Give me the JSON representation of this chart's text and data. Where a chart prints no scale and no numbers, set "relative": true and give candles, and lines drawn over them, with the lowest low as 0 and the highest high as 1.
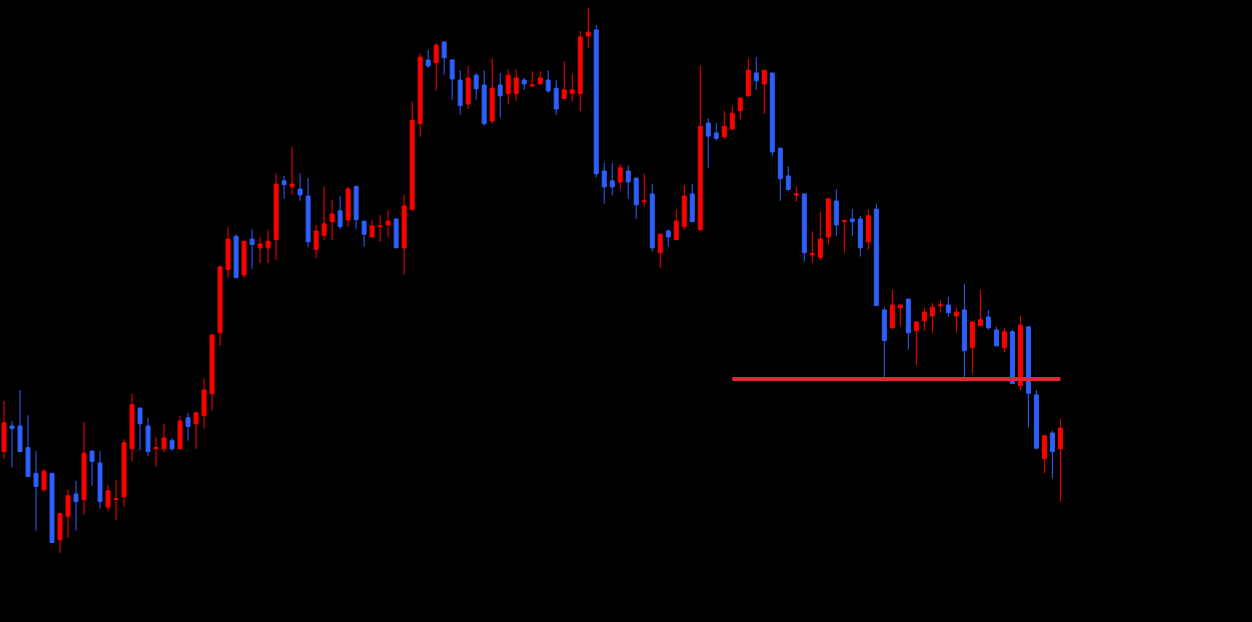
{
  "chart_data": {
    "type": "candlestick",
    "relative": true,
    "categories": [
      null,
      null,
      null,
      null,
      null,
      null,
      null,
      null,
      null,
      null,
      null,
      null,
      null,
      null,
      null,
      null,
      null,
      null,
      null,
      null,
      null,
      null,
      null,
      null,
      null,
      null,
      null,
      null,
      null,
      null,
      null,
      null,
      null,
      null,
      null,
      null,
      null,
      null,
      null,
      null,
      null,
      null,
      null,
      null,
      null,
      null,
      null,
      null,
      null,
      null,
      null,
      null,
      null,
      null,
      null,
      null,
      null,
      null,
      null,
      null,
      null,
      null,
      null,
      null,
      null,
      null,
      null,
      null,
      null,
      null,
      null,
      null,
      null,
      null,
      null,
      null,
      null,
      null,
      null,
      null,
      null,
      null,
      null,
      null,
      null,
      null,
      null,
      null,
      null,
      null,
      null,
      null,
      null,
      null,
      null,
      null,
      null,
      null,
      null,
      null,
      null,
      null,
      null,
      null,
      null,
      null,
      null,
      null,
      null,
      null,
      null,
      null,
      null,
      null,
      null,
      null,
      null,
      null,
      null,
      null,
      null,
      null,
      null,
      null,
      null,
      null,
      null,
      null,
      null,
      null,
      null,
      null,
      null
    ],
    "ohlc": [
      [
        0.186,
        0.279,
        0.172,
        0.239
      ],
      [
        0.233,
        0.242,
        0.157,
        0.228
      ],
      [
        0.233,
        0.299,
        0.186,
        0.186
      ],
      [
        0.193,
        0.253,
        0.14,
        0.14
      ],
      [
        0.146,
        0.187,
        0.041,
        0.122
      ],
      [
        0.116,
        0.154,
        0.112,
        0.15
      ],
      [
        0.146,
        0.146,
        0.019,
        0.019
      ],
      [
        0.024,
        0.072,
        0,
        0.072
      ],
      [
        0.067,
        0.116,
        0.028,
        0.105
      ],
      [
        0.108,
        0.132,
        0.041,
        0.094
      ],
      [
        0.098,
        0.24,
        0.07,
        0.183
      ],
      [
        0.187,
        0.187,
        0.123,
        0.168
      ],
      [
        0.165,
        0.187,
        0.081,
        0.094
      ],
      [
        0.084,
        0.125,
        0.076,
        0.114
      ],
      [
        0.098,
        0.134,
        0.061,
        0.099
      ],
      [
        0.103,
        0.209,
        0.084,
        0.202
      ],
      [
        0.191,
        0.292,
        0.168,
        0.272
      ],
      [
        0.266,
        0.266,
        0.188,
        0.237
      ],
      [
        0.233,
        0.248,
        0.178,
        0.186
      ],
      [
        0.191,
        0.213,
        0.158,
        0.193
      ],
      [
        0.191,
        0.237,
        0.185,
        0.211
      ],
      [
        0.206,
        0.211,
        0.187,
        0.191
      ],
      [
        0.191,
        0.251,
        0.191,
        0.242
      ],
      [
        0.248,
        0.257,
        0.206,
        0.232
      ],
      [
        0.237,
        0.257,
        0.191,
        0.257
      ],
      [
        0.252,
        0.32,
        0.228,
        0.299
      ],
      [
        0.292,
        0.4,
        0.261,
        0.4
      ],
      [
        0.404,
        0.528,
        0.38,
        0.525
      ],
      [
        0.52,
        0.598,
        0.505,
        0.576
      ],
      [
        0.581,
        0.585,
        0.505,
        0.505
      ],
      [
        0.51,
        0.572,
        0.505,
        0.572
      ],
      [
        0.576,
        0.594,
        0.521,
        0.566
      ],
      [
        0.56,
        0.58,
        0.532,
        0.567
      ],
      [
        0.56,
        0.593,
        0.532,
        0.572
      ],
      [
        0.575,
        0.696,
        0.538,
        0.677
      ],
      [
        0.683,
        0.692,
        0.65,
        0.676
      ],
      [
        0.672,
        0.745,
        0.657,
        0.677
      ],
      [
        0.668,
        0.697,
        0.646,
        0.657
      ],
      [
        0.655,
        0.688,
        0.561,
        0.571
      ],
      [
        0.557,
        0.602,
        0.541,
        0.591
      ],
      [
        0.583,
        0.672,
        0.574,
        0.604
      ],
      [
        0.608,
        0.648,
        0.574,
        0.622
      ],
      [
        0.628,
        0.655,
        0.594,
        0.599
      ],
      [
        0.611,
        0.672,
        0.598,
        0.668
      ],
      [
        0.673,
        0.673,
        0.595,
        0.612
      ],
      [
        0.609,
        0.609,
        0.562,
        0.585
      ],
      [
        0.58,
        0.611,
        0.58,
        0.6
      ],
      [
        0.599,
        0.62,
        0.571,
        0.6
      ],
      [
        0.602,
        0.629,
        0.58,
        0.609
      ],
      [
        0.613,
        0.613,
        0.56,
        0.56
      ],
      [
        0.56,
        0.657,
        0.51,
        0.637
      ],
      [
        0.63,
        0.829,
        0.63,
        0.794
      ],
      [
        0.788,
        0.917,
        0.764,
        0.91
      ],
      [
        0.905,
        0.923,
        0.89,
        0.894
      ],
      [
        0.9,
        0.936,
        0.848,
        0.932
      ],
      [
        0.938,
        0.938,
        0.878,
        0.909
      ],
      [
        0.905,
        0.905,
        0.832,
        0.87
      ],
      [
        0.868,
        0.886,
        0.804,
        0.821
      ],
      [
        0.824,
        0.894,
        0.815,
        0.872
      ],
      [
        0.877,
        0.881,
        0.832,
        0.852
      ],
      [
        0.859,
        0.886,
        0.784,
        0.788
      ],
      [
        0.793,
        0.908,
        0.788,
        0.853
      ],
      [
        0.859,
        0.881,
        0.799,
        0.839
      ],
      [
        0.843,
        0.888,
        0.824,
        0.877
      ],
      [
        0.843,
        0.888,
        0.83,
        0.872
      ],
      [
        0.868,
        0.872,
        0.85,
        0.861
      ],
      [
        0.857,
        0.884,
        0.857,
        0.859
      ],
      [
        0.861,
        0.884,
        0.861,
        0.872
      ],
      [
        0.868,
        0.886,
        0.845,
        0.848
      ],
      [
        0.853,
        0.868,
        0.804,
        0.815
      ],
      [
        0.834,
        0.903,
        0.834,
        0.85
      ],
      [
        0.843,
        0.879,
        0.829,
        0.85
      ],
      [
        0.843,
        0.958,
        0.811,
        0.947
      ],
      [
        0.949,
        1,
        0.927,
        0.956
      ],
      [
        0.96,
        0.969,
        0.689,
        0.696
      ],
      [
        0.701,
        0.716,
        0.641,
        0.672
      ],
      [
        0.683,
        0.716,
        0.656,
        0.672
      ],
      [
        0.681,
        0.714,
        0.667,
        0.707
      ],
      [
        0.701,
        0.711,
        0.65,
        0.681
      ],
      [
        0.688,
        0.688,
        0.613,
        0.639
      ],
      [
        0.645,
        0.696,
        0.635,
        0.646
      ],
      [
        0.659,
        0.677,
        0.553,
        0.56
      ],
      [
        0.551,
        0.585,
        0.523,
        0.585
      ],
      [
        0.591,
        0.594,
        0.562,
        0.58
      ],
      [
        0.575,
        0.63,
        0.575,
        0.609
      ],
      [
        0.599,
        0.675,
        0.593,
        0.655
      ],
      [
        0.659,
        0.677,
        0.608,
        0.608
      ],
      [
        0.593,
        0.894,
        0.593,
        0.783
      ],
      [
        0.789,
        0.798,
        0.707,
        0.765
      ],
      [
        0.771,
        0.789,
        0.757,
        0.761
      ],
      [
        0.764,
        0.811,
        0.76,
        0.783
      ],
      [
        0.778,
        0.82,
        0.778,
        0.807
      ],
      [
        0.812,
        0.835,
        0.796,
        0.835
      ],
      [
        0.839,
        0.908,
        0.839,
        0.886
      ],
      [
        0.881,
        0.91,
        0.85,
        0.867
      ],
      [
        0.861,
        0.886,
        0.806,
        0.886
      ],
      [
        0.881,
        0.881,
        0.729,
        0.736
      ],
      [
        0.743,
        0.743,
        0.646,
        0.687
      ],
      [
        0.692,
        0.71,
        0.665,
        0.667
      ],
      [
        0.657,
        0.672,
        0.645,
        0.659
      ],
      [
        0.659,
        0.659,
        0.535,
        0.551
      ],
      [
        0.547,
        0.59,
        0.533,
        0.549
      ],
      [
        0.542,
        0.626,
        0.538,
        0.576
      ],
      [
        0.58,
        0.65,
        0.566,
        0.65
      ],
      [
        0.646,
        0.668,
        0.582,
        0.602
      ],
      [
        0.608,
        0.611,
        0.551,
        0.61
      ],
      [
        0.613,
        0.631,
        0.582,
        0.608
      ],
      [
        0.613,
        0.619,
        0.544,
        0.56
      ],
      [
        0.571,
        0.63,
        0.557,
        0.619
      ],
      [
        0.631,
        0.641,
        0.453,
        0.454
      ],
      [
        0.446,
        0.451,
        0.323,
        0.39
      ],
      [
        0.413,
        0.483,
        0.413,
        0.455
      ],
      [
        0.45,
        0.455,
        0.417,
        0.455
      ],
      [
        0.466,
        0.466,
        0.373,
        0.404
      ],
      [
        0.408,
        0.424,
        0.344,
        0.424
      ],
      [
        0.426,
        0.45,
        0.408,
        0.442
      ],
      [
        0.435,
        0.459,
        0.404,
        0.451
      ],
      [
        0.454,
        0.464,
        0.441,
        0.455
      ],
      [
        0.455,
        0.47,
        0.434,
        0.441
      ],
      [
        0.435,
        0.45,
        0.404,
        0.442
      ],
      [
        0.446,
        0.494,
        0.323,
        0.371
      ],
      [
        0.377,
        0.424,
        0.329,
        0.424
      ],
      [
        0.417,
        0.483,
        0.417,
        0.428
      ],
      [
        0.433,
        0.446,
        0.41,
        0.413
      ],
      [
        0.409,
        0.415,
        0.379,
        0.38
      ],
      [
        0.377,
        0.413,
        0.368,
        0.406
      ],
      [
        0.406,
        0.409,
        0.31,
        0.311
      ],
      [
        0.307,
        0.435,
        0.298,
        0.418
      ],
      [
        0.415,
        0.415,
        0.23,
        0.293
      ],
      [
        0.29,
        0.299,
        0.192,
        0.192
      ],
      [
        0.173,
        0.215,
        0.146,
        0.215
      ],
      [
        0.22,
        0.224,
        0.136,
        0.186
      ],
      [
        0.191,
        0.246,
        0.094,
        0.229
      ]
    ],
    "colors": [
      "#ff0000",
      "#2f5fff",
      "#2f5fff",
      "#2f5fff",
      "#2f5fff",
      "#ff0000",
      "#2f5fff",
      "#ff0000",
      "#ff0000",
      "#2f5fff",
      "#ff0000",
      "#2f5fff",
      "#2f5fff",
      "#ff0000",
      "#ff0000",
      "#ff0000",
      "#ff0000",
      "#2f5fff",
      "#2f5fff",
      "#ff0000",
      "#ff0000",
      "#2f5fff",
      "#ff0000",
      "#2f5fff",
      "#ff0000",
      "#ff0000",
      "#ff0000",
      "#ff0000",
      "#ff0000",
      "#2f5fff",
      "#ff0000",
      "#2f5fff",
      "#ff0000",
      "#ff0000",
      "#ff0000",
      "#2f5fff",
      "#ff0000",
      "#2f5fff",
      "#2f5fff",
      "#ff0000",
      "#ff0000",
      "#ff0000",
      "#2f5fff",
      "#ff0000",
      "#2f5fff",
      "#2f5fff",
      "#ff0000",
      "#ff0000",
      "#ff0000",
      "#2f5fff",
      "#ff0000",
      "#ff0000",
      "#ff0000",
      "#2f5fff",
      "#ff0000",
      "#2f5fff",
      "#2f5fff",
      "#2f5fff",
      "#ff0000",
      "#2f5fff",
      "#2f5fff",
      "#ff0000",
      "#2f5fff",
      "#ff0000",
      "#ff0000",
      "#2f5fff",
      "#ff0000",
      "#ff0000",
      "#2f5fff",
      "#2f5fff",
      "#ff0000",
      "#ff0000",
      "#ff0000",
      "#ff0000",
      "#2f5fff",
      "#2f5fff",
      "#2f5fff",
      "#ff0000",
      "#2f5fff",
      "#2f5fff",
      "#ff0000",
      "#2f5fff",
      "#ff0000",
      "#2f5fff",
      "#ff0000",
      "#ff0000",
      "#2f5fff",
      "#ff0000",
      "#2f5fff",
      "#2f5fff",
      "#ff0000",
      "#ff0000",
      "#ff0000",
      "#ff0000",
      "#2f5fff",
      "#ff0000",
      "#2f5fff",
      "#2f5fff",
      "#2f5fff",
      "#ff0000",
      "#2f5fff",
      "#ff0000",
      "#ff0000",
      "#ff0000",
      "#2f5fff",
      "#ff0000",
      "#2f5fff",
      "#2f5fff",
      "#ff0000",
      "#2f5fff",
      "#2f5fff",
      "#ff0000",
      "#ff0000",
      "#2f5fff",
      "#ff0000",
      "#ff0000",
      "#ff0000",
      "#ff0000",
      "#2f5fff",
      "#ff0000",
      "#2f5fff",
      "#ff0000",
      "#ff0000",
      "#2f5fff",
      "#2f5fff",
      "#ff0000",
      "#2f5fff",
      "#ff0000",
      "#2f5fff",
      "#2f5fff",
      "#ff0000",
      "#2f5fff",
      "#ff0000"
    ],
    "series": [
      {
        "type": "line",
        "color": "#e6262e",
        "values": [
          null,
          null,
          null,
          null,
          null,
          null,
          null,
          null,
          null,
          null,
          null,
          null,
          null,
          null,
          null,
          null,
          null,
          null,
          null,
          null,
          null,
          null,
          null,
          null,
          null,
          null,
          null,
          null,
          null,
          null,
          null,
          null,
          null,
          null,
          null,
          null,
          null,
          null,
          null,
          null,
          null,
          null,
          null,
          null,
          null,
          null,
          null,
          null,
          null,
          null,
          null,
          null,
          null,
          null,
          null,
          null,
          null,
          null,
          null,
          null,
          null,
          null,
          null,
          null,
          null,
          null,
          null,
          null,
          null,
          null,
          null,
          null,
          null,
          null,
          null,
          null,
          null,
          null,
          null,
          null,
          null,
          null,
          null,
          null,
          null,
          null,
          null,
          null,
          null,
          null,
          null,
          0.319,
          0.319,
          0.319,
          0.319,
          0.319,
          0.319,
          0.319,
          0.319,
          0.319,
          0.319,
          0.319,
          0.319,
          0.319,
          0.319,
          0.319,
          0.319,
          0.319,
          0.319,
          0.319,
          0.319,
          0.319,
          0.319,
          0.319,
          0.319,
          0.319,
          0.319,
          0.319,
          0.319,
          0.319,
          0.319,
          0.319,
          0.319,
          0.319,
          0.319,
          0.319,
          0.319,
          0.319,
          0.319,
          0.319,
          0.319,
          0.319,
          0.319
        ]
      }
    ]
  }
}
